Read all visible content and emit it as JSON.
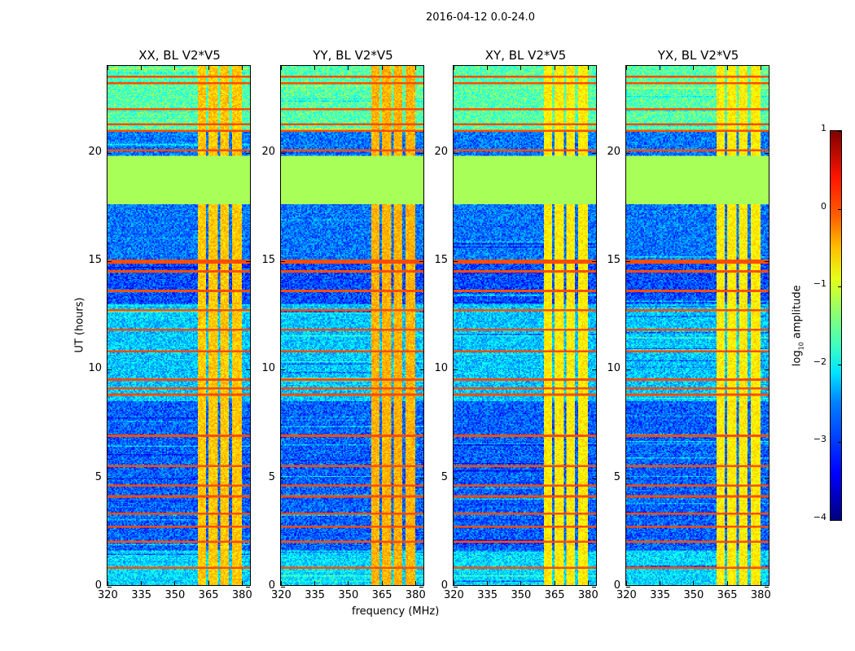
{
  "suptitle": "2016-04-12 0.0-24.0",
  "xlabel": "frequency (MHz)",
  "ylabel": "UT (hours)",
  "colorbar": {
    "label_prefix": "log",
    "label_sub": "10",
    "label_suffix": " amplitude",
    "ticks": [
      1,
      0,
      -1,
      -2,
      -3,
      -4
    ],
    "tick_labels": [
      "1",
      "0",
      "−1",
      "−2",
      "−3",
      "−4"
    ],
    "vmin": -4,
    "vmax": 1,
    "colormap": "jet"
  },
  "chart_data": {
    "type": "heatmap",
    "xlim": [
      320,
      384.4
    ],
    "ylim": [
      0,
      24
    ],
    "xticks": [
      320,
      335,
      350,
      365,
      380
    ],
    "xtick_labels": [
      "320",
      "335",
      "350",
      "365",
      "380"
    ],
    "yticks": [
      0,
      5,
      10,
      15,
      20
    ],
    "ytick_labels": [
      "0",
      "5",
      "10",
      "15",
      "20"
    ],
    "panels": [
      {
        "title": "XX, BL V2*V5",
        "rfi_level": -0.6
      },
      {
        "title": "YY, BL V2*V5",
        "rfi_level": -0.5
      },
      {
        "title": "XY, BL V2*V5",
        "rfi_level": -0.8
      },
      {
        "title": "YX, BL V2*V5",
        "rfi_level": -0.8
      }
    ],
    "flagged_gap_hours": [
      17.6,
      19.85
    ],
    "flagged_value": -1.3,
    "rfi_band_mhz": [
      361,
      380.5
    ],
    "rfi_gaps_mhz": [
      365.2,
      370.6,
      375.5
    ],
    "background_segments": [
      {
        "from": 0,
        "to": 1.6,
        "level": -2.3
      },
      {
        "from": 1.6,
        "to": 8.5,
        "level": -2.9
      },
      {
        "from": 8.5,
        "to": 13.0,
        "level": -2.4
      },
      {
        "from": 13.0,
        "to": 15.0,
        "level": -3.0
      },
      {
        "from": 15.0,
        "to": 17.6,
        "level": -2.8
      },
      {
        "from": 19.85,
        "to": 21.0,
        "level": -2.8
      },
      {
        "from": 21.0,
        "to": 24.0,
        "level": -1.7
      }
    ],
    "bright_bands_hours": [
      0.8,
      2.0,
      2.7,
      3.3,
      4.1,
      4.6,
      5.5,
      6.9,
      8.8,
      9.1,
      9.5,
      10.8,
      11.8,
      12.7,
      13.6,
      14.5,
      14.9,
      15.0,
      20.1,
      21.0,
      21.3,
      22.0,
      23.2,
      23.5
    ]
  }
}
